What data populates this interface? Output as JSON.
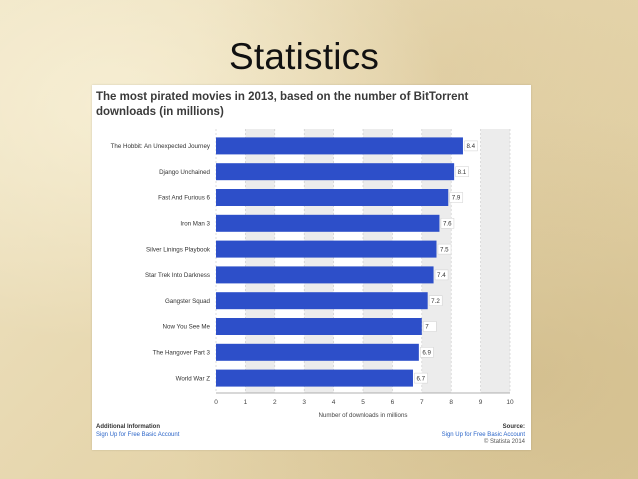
{
  "slide": {
    "title": "Statistics"
  },
  "chart_data": {
    "type": "bar",
    "orientation": "horizontal",
    "title": "The most pirated movies in 2013, based on the number of BitTorrent downloads (in millions)",
    "xlabel": "Number of downloads in millions",
    "ylabel": "",
    "xlim": [
      0,
      10
    ],
    "xticks": [
      "0",
      "1",
      "2",
      "3",
      "4",
      "5",
      "6",
      "7",
      "8",
      "9",
      "10"
    ],
    "grid": true,
    "bar_color": "#2d4fc9",
    "categories": [
      "The Hobbit: An Unexpected Journey",
      "Django Unchained",
      "Fast And Furious 6",
      "Iron Man 3",
      "Silver Linings Playbook",
      "Star Trek Into Darkness",
      "Gangster Squad",
      "Now You See Me",
      "The Hangover Part 3",
      "World War Z"
    ],
    "values": [
      8.4,
      8.1,
      7.9,
      7.6,
      7.5,
      7.4,
      7.2,
      7,
      6.9,
      6.7
    ],
    "value_labels": [
      "8.4",
      "8.1",
      "7.9",
      "7.6",
      "7.5",
      "7.4",
      "7.2",
      "7",
      "6.9",
      "6.7"
    ]
  },
  "footer": {
    "additional_heading": "Additional Information",
    "additional_link": "Sign Up for Free Basic Account",
    "source_heading": "Source:",
    "source_link": "Sign Up for Free Basic Account",
    "copyright": "© Statista 2014"
  }
}
